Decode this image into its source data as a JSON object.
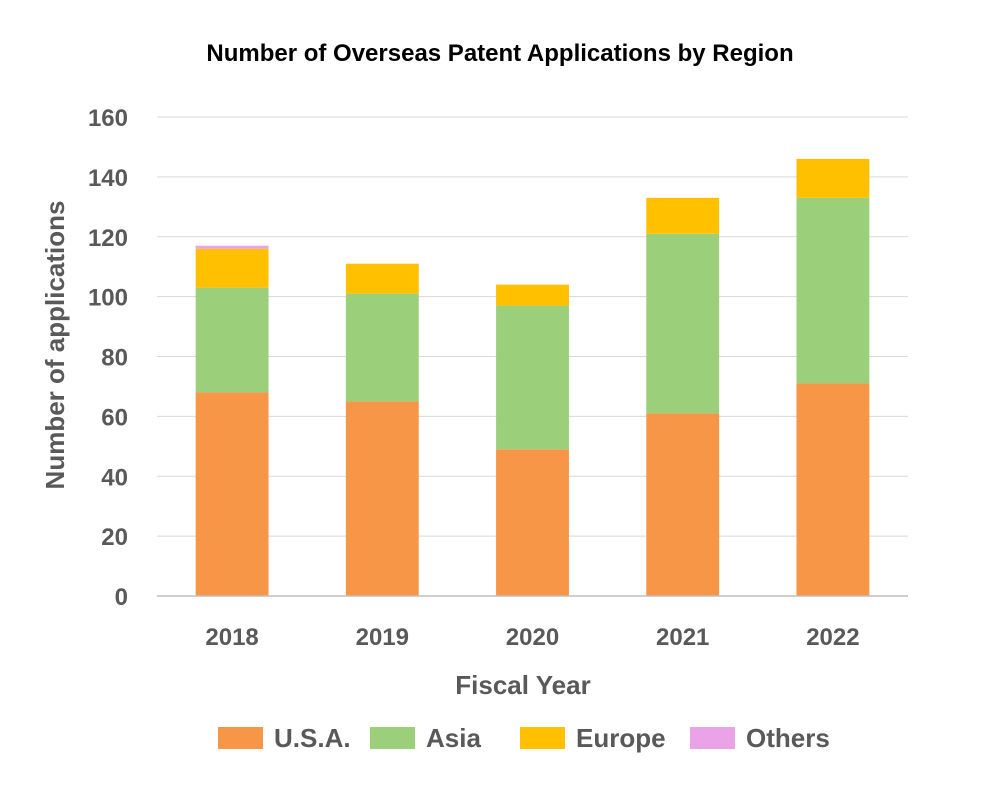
{
  "chart_data": {
    "type": "bar",
    "stacked": true,
    "title": "Number of Overseas Patent Applications by Region",
    "xlabel": "Fiscal Year",
    "ylabel": "Number of applications",
    "categories": [
      "2018",
      "2019",
      "2020",
      "2021",
      "2022"
    ],
    "ylim": [
      0,
      160
    ],
    "yticks": [
      0,
      20,
      40,
      60,
      80,
      100,
      120,
      140,
      160
    ],
    "ytick_labels": [
      "0",
      "20",
      "40",
      "60",
      "80",
      "100",
      "120",
      "140",
      "160"
    ],
    "grid": true,
    "legend_position": "bottom",
    "series": [
      {
        "name": "U.S.A.",
        "color": "#f79646",
        "values": [
          68,
          65,
          49,
          61,
          71
        ]
      },
      {
        "name": "Asia",
        "color": "#9bcf7a",
        "values": [
          35,
          36,
          48,
          60,
          62
        ]
      },
      {
        "name": "Europe",
        "color": "#ffc000",
        "values": [
          13,
          10,
          7,
          12,
          13
        ]
      },
      {
        "name": "Others",
        "color": "#eaa3e6",
        "values": [
          1,
          0,
          0,
          0,
          0
        ]
      }
    ]
  }
}
